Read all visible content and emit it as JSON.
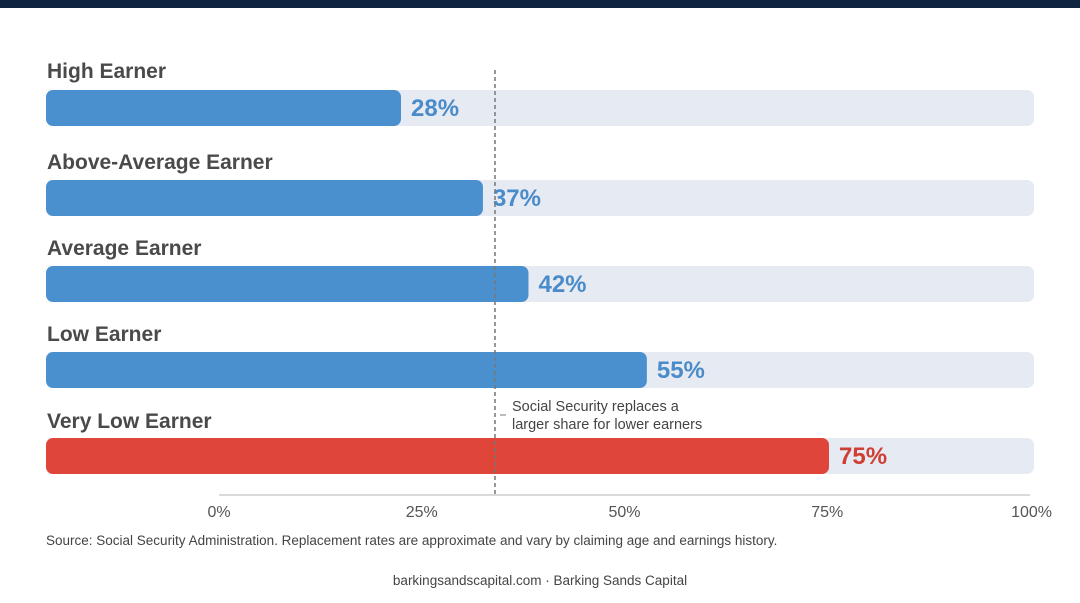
{
  "colors": {
    "top_bar": "#0f2440",
    "track": "#e6eaf2",
    "default_bar": "#4a90cf",
    "highlight_bar": "#df4538",
    "default_label": "#4a8bc9",
    "highlight_label": "#cf3e32",
    "reference_line": "#777777"
  },
  "chart_data": {
    "type": "bar",
    "orientation": "horizontal",
    "title": "",
    "xlabel": "",
    "ylabel": "",
    "categories": [
      "High Earner",
      "Above-Average Earner",
      "Average Earner",
      "Low Earner",
      "Very Low Earner"
    ],
    "values": [
      28,
      37,
      42,
      55,
      75
    ],
    "value_labels": [
      "28%",
      "37%",
      "42%",
      "55%",
      "75%"
    ],
    "highlight_index": 4,
    "x_ticks": [
      0,
      25,
      50,
      75,
      100
    ],
    "x_tick_labels": [
      "0%",
      "25%",
      "50%",
      "75%",
      "100%"
    ],
    "xlim": [
      0,
      100
    ],
    "reference_line_value": 34,
    "annotation": {
      "lines": [
        "Social Security replaces a",
        "larger share for lower earners"
      ]
    },
    "grid": false
  },
  "source_note": "Source: Social Security Administration. Replacement rates are approximate and vary by claiming age and earnings history.",
  "footer": "barkingsandscapital.com · Barking Sands Capital"
}
